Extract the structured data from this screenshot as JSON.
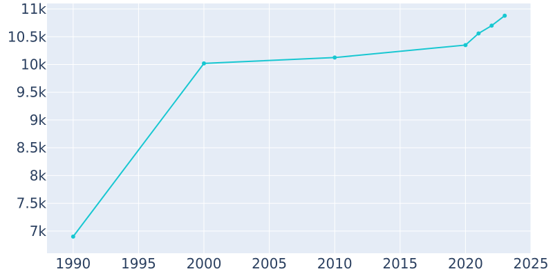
{
  "chart_data": {
    "type": "line",
    "title": "",
    "xlabel": "",
    "ylabel": "",
    "xlim": [
      1988,
      2025
    ],
    "ylim": [
      6600,
      11100
    ],
    "grid": true,
    "legend": "none",
    "colors": {
      "plot_bg": "#e5ecf6",
      "grid": "#ffffff",
      "line": "#17c7d1",
      "text": "#2a3f5f"
    },
    "x_ticks": [
      1990,
      1995,
      2000,
      2005,
      2010,
      2015,
      2020,
      2025
    ],
    "x_tick_labels": [
      "1990",
      "1995",
      "2000",
      "2005",
      "2010",
      "2015",
      "2020",
      "2025"
    ],
    "y_ticks": [
      7000,
      7500,
      8000,
      8500,
      9000,
      9500,
      10000,
      10500,
      11000
    ],
    "y_tick_labels": [
      "7k",
      "7.5k",
      "8k",
      "8.5k",
      "9k",
      "9.5k",
      "10k",
      "10.5k",
      "11k"
    ],
    "series": [
      {
        "x": [
          1990,
          2000,
          2010,
          2020,
          2021,
          2022,
          2023
        ],
        "y": [
          6900,
          10020,
          10125,
          10350,
          10560,
          10700,
          10880
        ]
      }
    ]
  }
}
